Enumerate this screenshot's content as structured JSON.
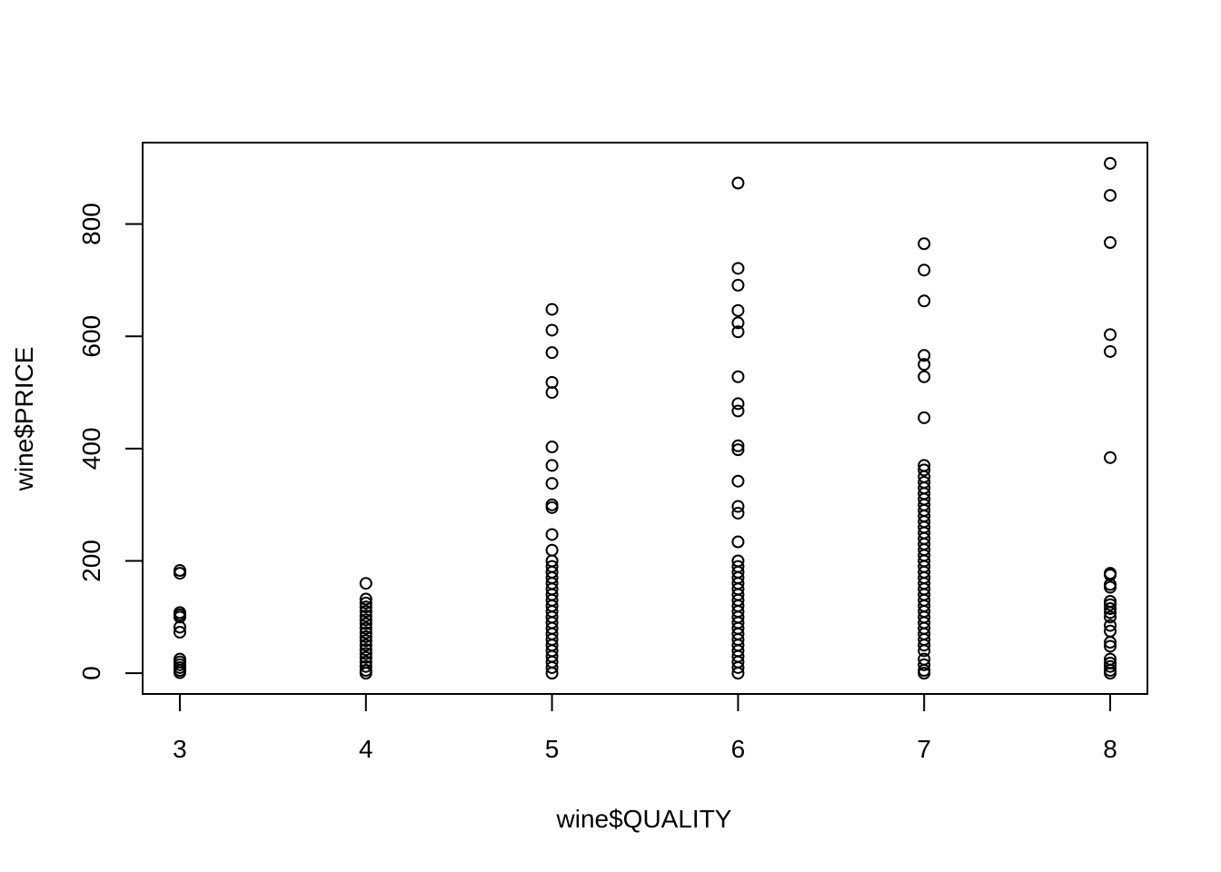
{
  "chart_data": {
    "type": "scatter",
    "title": "",
    "xlabel": "wine$QUALITY",
    "ylabel": "wine$PRICE",
    "xlim": [
      2.8,
      8.2
    ],
    "ylim": [
      -37,
      945
    ],
    "x_ticks": [
      3,
      4,
      5,
      6,
      7,
      8
    ],
    "y_ticks": [
      0,
      200,
      400,
      600,
      800
    ],
    "grid": false,
    "legend": "none",
    "marker": "open-circle",
    "color": "#000000",
    "points": [
      {
        "x": 3,
        "y": 183
      },
      {
        "x": 3,
        "y": 178
      },
      {
        "x": 3,
        "y": 108
      },
      {
        "x": 3,
        "y": 104
      },
      {
        "x": 3,
        "y": 100
      },
      {
        "x": 3,
        "y": 82
      },
      {
        "x": 3,
        "y": 73
      },
      {
        "x": 3,
        "y": 25
      },
      {
        "x": 3,
        "y": 20
      },
      {
        "x": 3,
        "y": 15
      },
      {
        "x": 3,
        "y": 10
      },
      {
        "x": 3,
        "y": 5
      },
      {
        "x": 3,
        "y": 1
      },
      {
        "x": 4,
        "y": 160
      },
      {
        "x": 4,
        "y": 132
      },
      {
        "x": 4,
        "y": 125
      },
      {
        "x": 4,
        "y": 118
      },
      {
        "x": 4,
        "y": 110
      },
      {
        "x": 4,
        "y": 102
      },
      {
        "x": 4,
        "y": 95
      },
      {
        "x": 4,
        "y": 88
      },
      {
        "x": 4,
        "y": 80
      },
      {
        "x": 4,
        "y": 72
      },
      {
        "x": 4,
        "y": 65
      },
      {
        "x": 4,
        "y": 58
      },
      {
        "x": 4,
        "y": 50
      },
      {
        "x": 4,
        "y": 42
      },
      {
        "x": 4,
        "y": 35
      },
      {
        "x": 4,
        "y": 28
      },
      {
        "x": 4,
        "y": 20
      },
      {
        "x": 4,
        "y": 12
      },
      {
        "x": 4,
        "y": 5
      },
      {
        "x": 4,
        "y": 0
      },
      {
        "x": 5,
        "y": 648
      },
      {
        "x": 5,
        "y": 611
      },
      {
        "x": 5,
        "y": 571
      },
      {
        "x": 5,
        "y": 518
      },
      {
        "x": 5,
        "y": 500
      },
      {
        "x": 5,
        "y": 403
      },
      {
        "x": 5,
        "y": 370
      },
      {
        "x": 5,
        "y": 338
      },
      {
        "x": 5,
        "y": 300
      },
      {
        "x": 5,
        "y": 295
      },
      {
        "x": 5,
        "y": 247
      },
      {
        "x": 5,
        "y": 219
      },
      {
        "x": 5,
        "y": 200
      },
      {
        "x": 5,
        "y": 190
      },
      {
        "x": 5,
        "y": 180
      },
      {
        "x": 5,
        "y": 170
      },
      {
        "x": 5,
        "y": 160
      },
      {
        "x": 5,
        "y": 150
      },
      {
        "x": 5,
        "y": 140
      },
      {
        "x": 5,
        "y": 130
      },
      {
        "x": 5,
        "y": 120
      },
      {
        "x": 5,
        "y": 110
      },
      {
        "x": 5,
        "y": 100
      },
      {
        "x": 5,
        "y": 90
      },
      {
        "x": 5,
        "y": 80
      },
      {
        "x": 5,
        "y": 70
      },
      {
        "x": 5,
        "y": 60
      },
      {
        "x": 5,
        "y": 50
      },
      {
        "x": 5,
        "y": 40
      },
      {
        "x": 5,
        "y": 30
      },
      {
        "x": 5,
        "y": 20
      },
      {
        "x": 5,
        "y": 10
      },
      {
        "x": 5,
        "y": 0
      },
      {
        "x": 6,
        "y": 873
      },
      {
        "x": 6,
        "y": 721
      },
      {
        "x": 6,
        "y": 691
      },
      {
        "x": 6,
        "y": 646
      },
      {
        "x": 6,
        "y": 624
      },
      {
        "x": 6,
        "y": 608
      },
      {
        "x": 6,
        "y": 528
      },
      {
        "x": 6,
        "y": 480
      },
      {
        "x": 6,
        "y": 467
      },
      {
        "x": 6,
        "y": 405
      },
      {
        "x": 6,
        "y": 398
      },
      {
        "x": 6,
        "y": 342
      },
      {
        "x": 6,
        "y": 297
      },
      {
        "x": 6,
        "y": 285
      },
      {
        "x": 6,
        "y": 234
      },
      {
        "x": 6,
        "y": 200
      },
      {
        "x": 6,
        "y": 190
      },
      {
        "x": 6,
        "y": 180
      },
      {
        "x": 6,
        "y": 170
      },
      {
        "x": 6,
        "y": 160
      },
      {
        "x": 6,
        "y": 150
      },
      {
        "x": 6,
        "y": 140
      },
      {
        "x": 6,
        "y": 130
      },
      {
        "x": 6,
        "y": 120
      },
      {
        "x": 6,
        "y": 110
      },
      {
        "x": 6,
        "y": 100
      },
      {
        "x": 6,
        "y": 90
      },
      {
        "x": 6,
        "y": 80
      },
      {
        "x": 6,
        "y": 70
      },
      {
        "x": 6,
        "y": 60
      },
      {
        "x": 6,
        "y": 50
      },
      {
        "x": 6,
        "y": 40
      },
      {
        "x": 6,
        "y": 30
      },
      {
        "x": 6,
        "y": 20
      },
      {
        "x": 6,
        "y": 10
      },
      {
        "x": 6,
        "y": 0
      },
      {
        "x": 7,
        "y": 765
      },
      {
        "x": 7,
        "y": 718
      },
      {
        "x": 7,
        "y": 663
      },
      {
        "x": 7,
        "y": 566
      },
      {
        "x": 7,
        "y": 550
      },
      {
        "x": 7,
        "y": 528
      },
      {
        "x": 7,
        "y": 455
      },
      {
        "x": 7,
        "y": 370
      },
      {
        "x": 7,
        "y": 362
      },
      {
        "x": 7,
        "y": 350
      },
      {
        "x": 7,
        "y": 340
      },
      {
        "x": 7,
        "y": 330
      },
      {
        "x": 7,
        "y": 320
      },
      {
        "x": 7,
        "y": 310
      },
      {
        "x": 7,
        "y": 300
      },
      {
        "x": 7,
        "y": 290
      },
      {
        "x": 7,
        "y": 280
      },
      {
        "x": 7,
        "y": 270
      },
      {
        "x": 7,
        "y": 260
      },
      {
        "x": 7,
        "y": 250
      },
      {
        "x": 7,
        "y": 240
      },
      {
        "x": 7,
        "y": 230
      },
      {
        "x": 7,
        "y": 220
      },
      {
        "x": 7,
        "y": 210
      },
      {
        "x": 7,
        "y": 200
      },
      {
        "x": 7,
        "y": 190
      },
      {
        "x": 7,
        "y": 180
      },
      {
        "x": 7,
        "y": 170
      },
      {
        "x": 7,
        "y": 160
      },
      {
        "x": 7,
        "y": 150
      },
      {
        "x": 7,
        "y": 140
      },
      {
        "x": 7,
        "y": 130
      },
      {
        "x": 7,
        "y": 120
      },
      {
        "x": 7,
        "y": 110
      },
      {
        "x": 7,
        "y": 100
      },
      {
        "x": 7,
        "y": 90
      },
      {
        "x": 7,
        "y": 80
      },
      {
        "x": 7,
        "y": 70
      },
      {
        "x": 7,
        "y": 60
      },
      {
        "x": 7,
        "y": 50
      },
      {
        "x": 7,
        "y": 40
      },
      {
        "x": 7,
        "y": 25
      },
      {
        "x": 7,
        "y": 15
      },
      {
        "x": 7,
        "y": 5
      },
      {
        "x": 7,
        "y": 0
      },
      {
        "x": 8,
        "y": 908
      },
      {
        "x": 8,
        "y": 851
      },
      {
        "x": 8,
        "y": 767
      },
      {
        "x": 8,
        "y": 603
      },
      {
        "x": 8,
        "y": 573
      },
      {
        "x": 8,
        "y": 384
      },
      {
        "x": 8,
        "y": 178
      },
      {
        "x": 8,
        "y": 175
      },
      {
        "x": 8,
        "y": 158
      },
      {
        "x": 8,
        "y": 153
      },
      {
        "x": 8,
        "y": 128
      },
      {
        "x": 8,
        "y": 122
      },
      {
        "x": 8,
        "y": 115
      },
      {
        "x": 8,
        "y": 108
      },
      {
        "x": 8,
        "y": 100
      },
      {
        "x": 8,
        "y": 85
      },
      {
        "x": 8,
        "y": 75
      },
      {
        "x": 8,
        "y": 55
      },
      {
        "x": 8,
        "y": 48
      },
      {
        "x": 8,
        "y": 25
      },
      {
        "x": 8,
        "y": 18
      },
      {
        "x": 8,
        "y": 12
      },
      {
        "x": 8,
        "y": 5
      },
      {
        "x": 8,
        "y": 0
      }
    ]
  }
}
